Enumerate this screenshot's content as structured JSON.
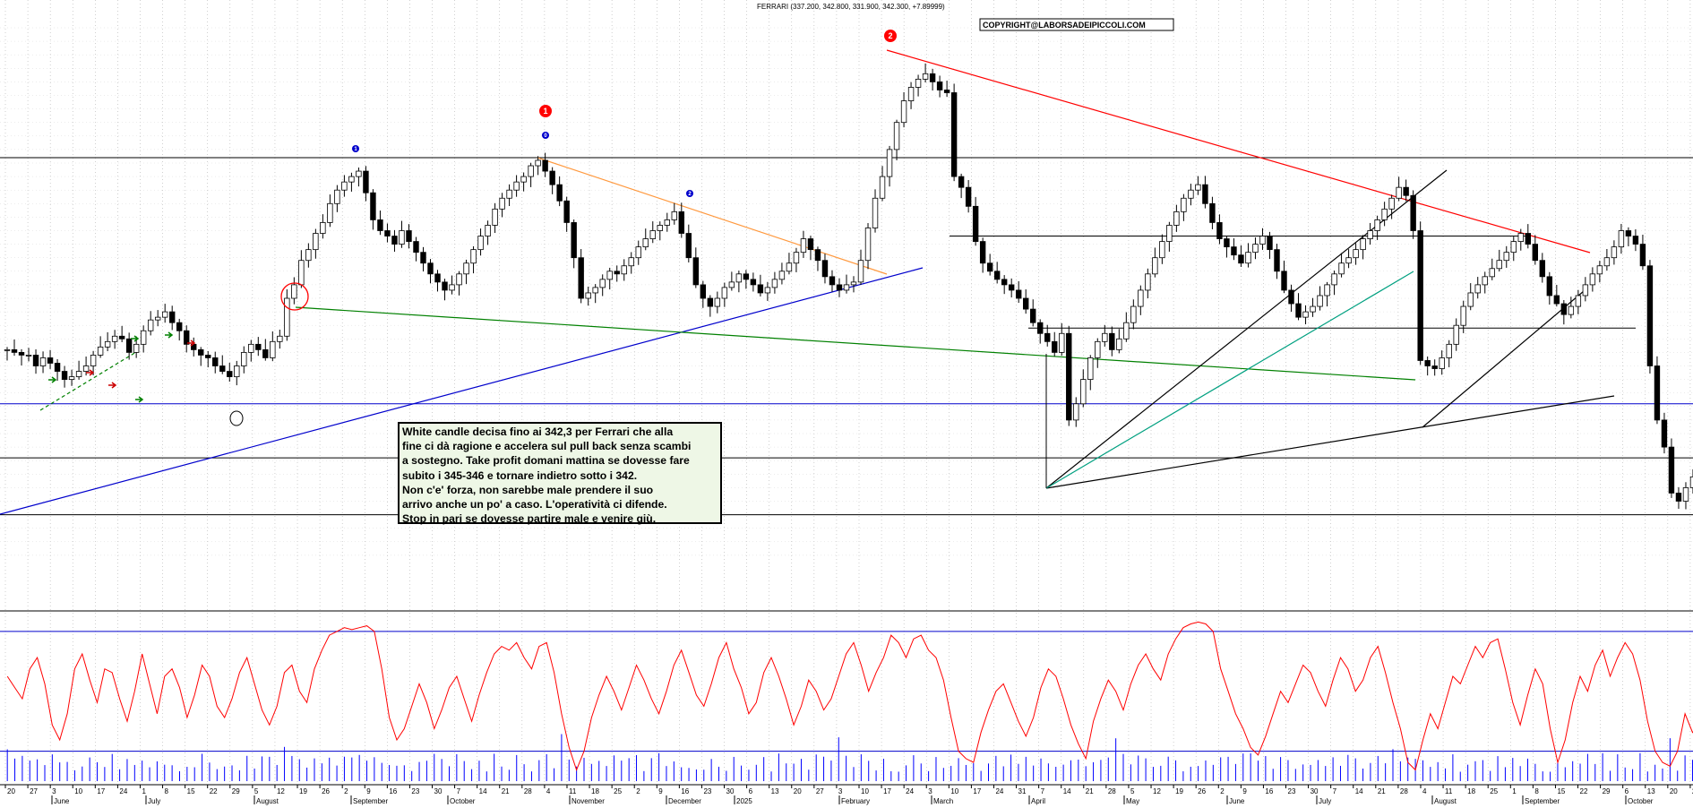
{
  "title": "FERRARI (337.200, 342.800, 331.900, 342.300, +7.89999)",
  "copyright": "COPYRIGHT@LABORSADEIPICCOLI.COM",
  "note": "White candle decisa fino ai 342,3 per Ferrari che alla\nfine ci dà ragione e accelera sul pull back senza scambi\na sostegno. Take profit domani mattina se dovesse fare\nsubito i 345-346 e tornare indietro sotto i 342.\nNon c'e' forza, non sarebbe male prendere il suo\narrivo anche un po' a caso. L'operatività ci difende.\nStop in pari se dovesse partire male e venire giù.",
  "markers": {
    "m1_red": "1",
    "m2_red": "2",
    "m0_blue": "0",
    "m1_blue": "1",
    "m2_blue": "2"
  },
  "colors": {
    "up": "#ffffff",
    "down": "#000000",
    "red": "#ff0000",
    "blue": "#0000cc",
    "green": "#008000",
    "orange": "#ff9a40",
    "teal": "#00a080",
    "grid": "#b0b0b0",
    "osc": "#ff0000",
    "volume": "#0000ff"
  },
  "chart_data": [
    {
      "type": "candlestick",
      "ylim": [
        305,
        505
      ],
      "y_ticks": [
        310,
        315,
        320,
        325,
        330,
        335,
        340,
        345,
        350,
        355,
        360,
        365,
        370,
        375,
        380,
        385,
        390,
        395,
        400,
        405,
        410,
        415,
        420,
        425,
        430,
        435,
        440,
        445,
        450,
        455,
        460,
        465,
        470,
        475,
        480,
        485,
        490,
        495,
        500,
        505
      ],
      "x_day_labels": [
        "20",
        "27",
        "3",
        "10",
        "17",
        "24",
        "1",
        "8",
        "15",
        "22",
        "29",
        "5",
        "12",
        "19",
        "26",
        "2",
        "9",
        "16",
        "23",
        "30",
        "7",
        "14",
        "21",
        "28",
        "4",
        "11",
        "18",
        "25",
        "2",
        "9",
        "16",
        "23",
        "30",
        "6",
        "13",
        "20",
        "27",
        "3",
        "10",
        "17",
        "24",
        "3",
        "10",
        "17",
        "24",
        "31",
        "7",
        "14",
        "21",
        "28",
        "5",
        "12",
        "19",
        "26",
        "2",
        "9",
        "16",
        "23",
        "30",
        "7",
        "14",
        "21",
        "28",
        "4",
        "11",
        "18",
        "25",
        "1",
        "8",
        "15",
        "22",
        "29",
        "6",
        "13",
        "20",
        "27"
      ],
      "x_month_labels": [
        "June",
        "July",
        "August",
        "September",
        "October",
        "November",
        "December",
        "2025",
        "February",
        "March",
        "April",
        "May",
        "June",
        "July",
        "August",
        "September",
        "October"
      ],
      "horizontal_levels": [
        457,
        428,
        394,
        366,
        346,
        325
      ],
      "key_prices": {
        "high_2": 493,
        "peak_1": 457,
        "low_april": 346,
        "last_close": 342.3,
        "last_low": 331.9,
        "recent_low": 322
      },
      "closes": [
        386,
        385,
        384,
        384,
        380,
        383,
        381,
        378,
        375,
        376,
        378,
        380,
        384,
        387,
        389,
        391,
        390,
        385,
        388,
        393,
        397,
        398,
        400,
        396,
        393,
        388,
        386,
        384,
        383,
        380,
        378,
        376,
        380,
        385,
        388,
        386,
        383,
        389,
        391,
        405,
        410,
        419,
        423,
        429,
        433,
        440,
        445,
        448,
        450,
        452,
        444,
        434,
        430,
        428,
        425,
        430,
        426,
        422,
        418,
        414,
        411,
        408,
        410,
        414,
        418,
        423,
        428,
        432,
        438,
        442,
        445,
        448,
        450,
        454,
        456,
        452,
        447,
        441,
        433,
        420,
        405,
        407,
        409,
        412,
        415,
        414,
        417,
        420,
        424,
        427,
        430,
        432,
        434,
        437,
        429,
        420,
        410,
        405,
        402,
        405,
        409,
        411,
        414,
        412,
        410,
        407,
        409,
        412,
        415,
        418,
        422,
        427,
        423,
        419,
        413,
        410,
        408,
        410,
        411,
        419,
        431,
        442,
        450,
        460,
        470,
        478,
        483,
        486,
        488,
        485,
        482,
        481,
        450,
        446,
        439,
        426,
        418,
        415,
        412,
        410,
        408,
        405,
        401,
        396,
        392,
        389,
        385,
        392,
        360,
        366,
        375,
        383,
        389,
        392,
        386,
        390,
        396,
        402,
        408,
        414,
        420,
        426,
        432,
        437,
        442,
        445,
        447,
        440,
        433,
        427,
        424,
        421,
        418,
        422,
        425,
        428,
        423,
        415,
        408,
        403,
        398,
        400,
        402,
        406,
        410,
        414,
        418,
        420,
        423,
        427,
        430,
        434,
        438,
        442,
        446,
        443,
        430,
        382,
        380,
        379,
        383,
        388,
        395,
        402,
        407,
        410,
        413,
        416,
        419,
        422,
        426,
        429,
        425,
        419,
        413,
        406,
        403,
        399,
        402,
        406,
        410,
        414,
        417,
        420,
        424,
        430,
        428,
        425,
        417,
        380,
        360,
        350,
        333,
        330,
        335,
        339,
        342.3
      ]
    },
    {
      "type": "line+bar",
      "ylim": [
        0,
        45000
      ],
      "y_ticks": [
        5000,
        10000,
        15000,
        20000,
        25000,
        30000,
        35000,
        40000,
        45000
      ],
      "levels": [
        40000,
        8000
      ],
      "oscillator": [
        28000,
        25000,
        22000,
        30000,
        33000,
        26000,
        15000,
        11000,
        18000,
        30000,
        34000,
        27000,
        21000,
        30000,
        29000,
        22000,
        16000,
        24000,
        34000,
        26000,
        18000,
        28000,
        30000,
        25000,
        17000,
        23000,
        31000,
        28000,
        20000,
        17000,
        22000,
        29000,
        33000,
        26000,
        19000,
        15000,
        20000,
        29000,
        31000,
        24000,
        21000,
        30000,
        35000,
        39000,
        40000,
        41000,
        40500,
        41000,
        41500,
        40000,
        30000,
        17000,
        11000,
        14000,
        20000,
        26000,
        21000,
        14000,
        19000,
        25000,
        28000,
        22000,
        16000,
        23000,
        29000,
        34000,
        36000,
        35000,
        37000,
        33000,
        30000,
        36000,
        37000,
        29000,
        18000,
        9000,
        3000,
        8000,
        17000,
        23000,
        28000,
        24000,
        19000,
        25000,
        31000,
        27000,
        22000,
        18000,
        24000,
        31000,
        35000,
        29000,
        23000,
        20000,
        26000,
        33000,
        37000,
        30000,
        25000,
        18000,
        21000,
        29000,
        33000,
        28000,
        22000,
        15000,
        20000,
        27000,
        24000,
        19000,
        22000,
        28000,
        34000,
        37000,
        31000,
        24000,
        29000,
        33000,
        39000,
        37000,
        33000,
        38000,
        39000,
        35000,
        33000,
        27000,
        17000,
        8000,
        6000,
        5000,
        13000,
        19000,
        24000,
        26000,
        21000,
        16000,
        12000,
        17000,
        25000,
        30000,
        28000,
        22000,
        15000,
        10000,
        6000,
        16000,
        22000,
        27000,
        24000,
        19000,
        26000,
        31000,
        34000,
        30000,
        27000,
        34000,
        38000,
        41000,
        42000,
        42500,
        42000,
        40000,
        30000,
        24000,
        18000,
        14000,
        9000,
        7000,
        12000,
        18000,
        24000,
        21000,
        26000,
        31000,
        29000,
        24000,
        20000,
        27000,
        33000,
        30000,
        24000,
        27000,
        33000,
        36000,
        29000,
        21000,
        14000,
        5000,
        3000,
        11000,
        18000,
        14000,
        21000,
        28000,
        26000,
        31000,
        36000,
        33000,
        37000,
        38000,
        30000,
        21000,
        15000,
        23000,
        30000,
        26000,
        14000,
        5000,
        11000,
        21000,
        28000,
        24000,
        31000,
        35000,
        28000,
        33000,
        37000,
        34000,
        27000,
        16000,
        8000,
        5000,
        4000,
        8000,
        18000,
        13000,
        15000
      ]
    }
  ]
}
